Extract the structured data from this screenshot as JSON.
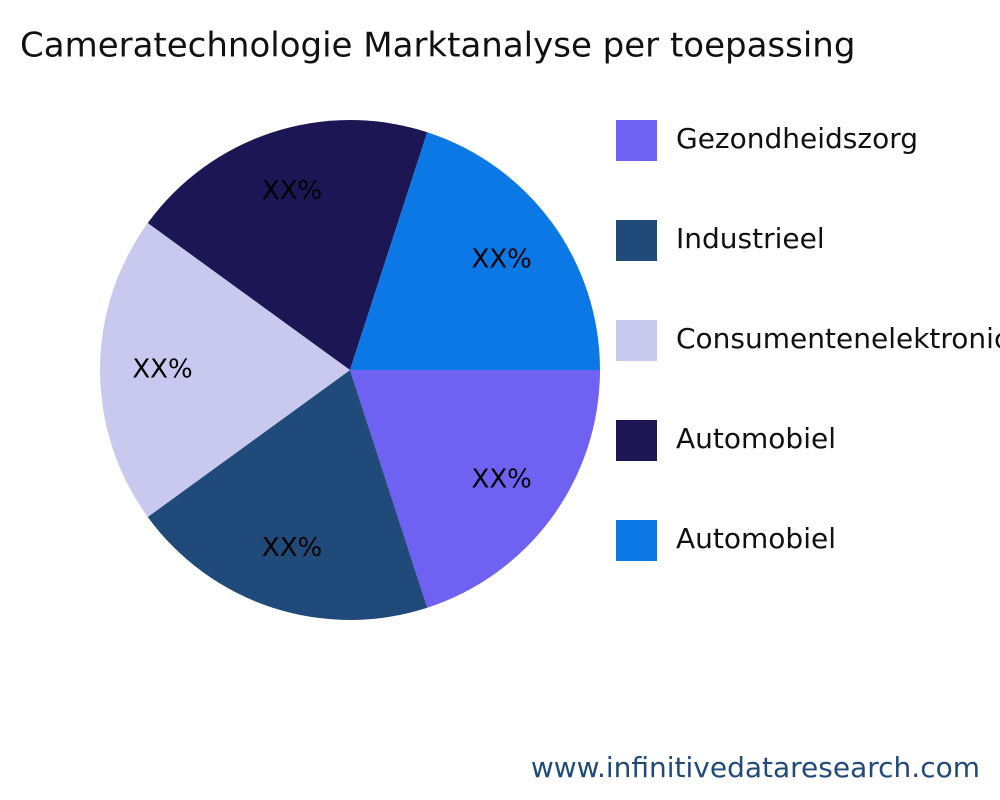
{
  "chart_data": {
    "type": "pie",
    "title": "Cameratechnologie Marktanalyse per toepassing",
    "categories": [
      "Gezondheidszorg",
      "Industrieel",
      "Consumentenelektronica",
      "Automobiel",
      "Automobiel"
    ],
    "values": [
      20,
      20,
      20,
      20,
      20
    ],
    "value_labels": [
      "XX%",
      "XX%",
      "XX%",
      "XX%",
      "XX%"
    ],
    "colors": [
      "#6f61f2",
      "#1f4a7a",
      "#c9c9f0",
      "#1c1754",
      "#0c78e6"
    ],
    "legend": "right"
  },
  "footer": {
    "text": "www.infinitivedataresearch.com"
  }
}
